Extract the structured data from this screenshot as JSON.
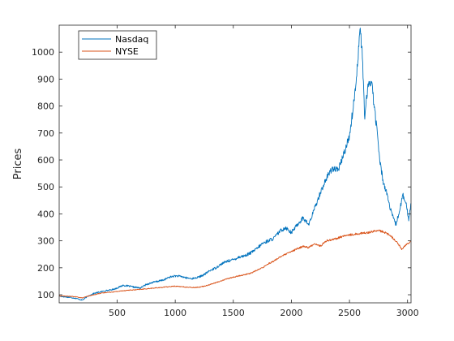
{
  "chart_data": {
    "type": "line",
    "title": "",
    "xlabel": "",
    "ylabel": "Prices",
    "xlim": [
      1,
      3030
    ],
    "ylim": [
      70,
      1100
    ],
    "xticks": [
      500,
      1000,
      1500,
      2000,
      2500,
      3000
    ],
    "yticks": [
      100,
      200,
      300,
      400,
      500,
      600,
      700,
      800,
      900,
      1000
    ],
    "grid": false,
    "legend_position": "top-left",
    "series": [
      {
        "name": "Nasdaq",
        "color": "#0072BD",
        "points": [
          [
            1,
            95
          ],
          [
            50,
            92
          ],
          [
            100,
            90
          ],
          [
            150,
            86
          ],
          [
            200,
            80
          ],
          [
            250,
            95
          ],
          [
            300,
            105
          ],
          [
            350,
            110
          ],
          [
            400,
            115
          ],
          [
            450,
            118
          ],
          [
            500,
            125
          ],
          [
            550,
            135
          ],
          [
            600,
            132
          ],
          [
            650,
            128
          ],
          [
            700,
            125
          ],
          [
            750,
            138
          ],
          [
            800,
            145
          ],
          [
            850,
            150
          ],
          [
            900,
            155
          ],
          [
            950,
            165
          ],
          [
            1000,
            170
          ],
          [
            1050,
            168
          ],
          [
            1100,
            162
          ],
          [
            1150,
            160
          ],
          [
            1200,
            165
          ],
          [
            1250,
            175
          ],
          [
            1300,
            190
          ],
          [
            1350,
            200
          ],
          [
            1400,
            215
          ],
          [
            1450,
            225
          ],
          [
            1500,
            230
          ],
          [
            1550,
            240
          ],
          [
            1600,
            245
          ],
          [
            1650,
            255
          ],
          [
            1700,
            270
          ],
          [
            1750,
            290
          ],
          [
            1800,
            300
          ],
          [
            1850,
            310
          ],
          [
            1900,
            335
          ],
          [
            1950,
            350
          ],
          [
            2000,
            330
          ],
          [
            2050,
            360
          ],
          [
            2100,
            385
          ],
          [
            2150,
            360
          ],
          [
            2200,
            420
          ],
          [
            2250,
            480
          ],
          [
            2300,
            530
          ],
          [
            2350,
            570
          ],
          [
            2400,
            560
          ],
          [
            2450,
            620
          ],
          [
            2500,
            690
          ],
          [
            2540,
            820
          ],
          [
            2570,
            960
          ],
          [
            2590,
            1090
          ],
          [
            2610,
            1000
          ],
          [
            2630,
            760
          ],
          [
            2660,
            870
          ],
          [
            2690,
            900
          ],
          [
            2710,
            810
          ],
          [
            2740,
            700
          ],
          [
            2760,
            600
          ],
          [
            2790,
            520
          ],
          [
            2820,
            480
          ],
          [
            2850,
            420
          ],
          [
            2880,
            380
          ],
          [
            2900,
            360
          ],
          [
            2930,
            410
          ],
          [
            2960,
            470
          ],
          [
            2990,
            430
          ],
          [
            3010,
            380
          ],
          [
            3030,
            440
          ]
        ]
      },
      {
        "name": "NYSE",
        "color": "#D95319",
        "points": [
          [
            1,
            96
          ],
          [
            50,
            95
          ],
          [
            100,
            94
          ],
          [
            150,
            92
          ],
          [
            200,
            88
          ],
          [
            250,
            95
          ],
          [
            300,
            100
          ],
          [
            350,
            105
          ],
          [
            400,
            108
          ],
          [
            450,
            110
          ],
          [
            500,
            112
          ],
          [
            550,
            115
          ],
          [
            600,
            117
          ],
          [
            650,
            118
          ],
          [
            700,
            120
          ],
          [
            750,
            122
          ],
          [
            800,
            124
          ],
          [
            850,
            126
          ],
          [
            900,
            128
          ],
          [
            950,
            130
          ],
          [
            1000,
            132
          ],
          [
            1050,
            130
          ],
          [
            1100,
            128
          ],
          [
            1150,
            127
          ],
          [
            1200,
            128
          ],
          [
            1250,
            132
          ],
          [
            1300,
            138
          ],
          [
            1350,
            145
          ],
          [
            1400,
            152
          ],
          [
            1450,
            160
          ],
          [
            1500,
            165
          ],
          [
            1550,
            170
          ],
          [
            1600,
            175
          ],
          [
            1650,
            180
          ],
          [
            1700,
            190
          ],
          [
            1750,
            200
          ],
          [
            1800,
            215
          ],
          [
            1850,
            225
          ],
          [
            1900,
            240
          ],
          [
            1950,
            250
          ],
          [
            2000,
            260
          ],
          [
            2050,
            270
          ],
          [
            2100,
            280
          ],
          [
            2150,
            275
          ],
          [
            2200,
            290
          ],
          [
            2250,
            280
          ],
          [
            2300,
            300
          ],
          [
            2350,
            305
          ],
          [
            2400,
            310
          ],
          [
            2450,
            318
          ],
          [
            2500,
            322
          ],
          [
            2550,
            325
          ],
          [
            2600,
            328
          ],
          [
            2650,
            330
          ],
          [
            2700,
            335
          ],
          [
            2750,
            338
          ],
          [
            2800,
            332
          ],
          [
            2850,
            320
          ],
          [
            2900,
            300
          ],
          [
            2950,
            270
          ],
          [
            3000,
            290
          ],
          [
            3030,
            300
          ]
        ]
      }
    ]
  }
}
